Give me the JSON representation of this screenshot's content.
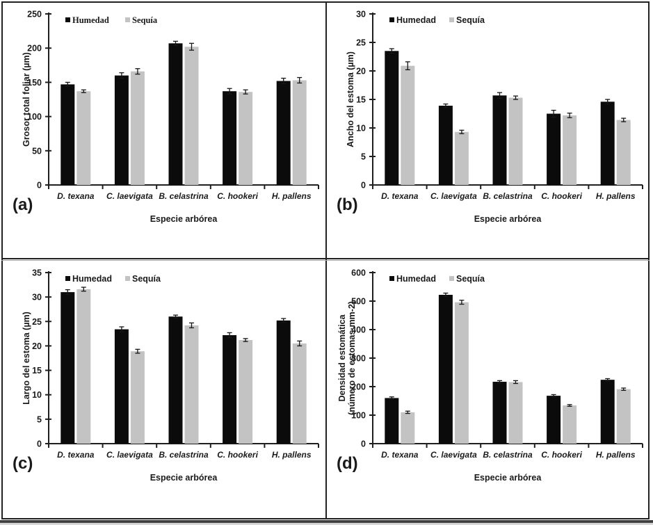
{
  "figure": {
    "x_axis_title": "Especie arbórea",
    "categories": [
      "D. texana",
      "C. laevigata",
      "B. celastrina",
      "C. hookeri",
      "H. pallens"
    ],
    "legend": {
      "items": [
        {
          "label": "Humedad",
          "color": "#0b0b0b"
        },
        {
          "label": "Sequía",
          "color": "#c3c3c3"
        }
      ],
      "position": "top-left-inside"
    },
    "colors": {
      "humedad_bar": "#0b0b0b",
      "sequia_bar": "#c3c3c3",
      "axis": "#1f1f1f",
      "text": "#1a1a1a",
      "frame": "#212121"
    }
  },
  "chart_data": [
    {
      "id": "a",
      "type": "bar",
      "panel_label": "(a)",
      "ylabel_lines": [
        "Grosor total foliar (µm)"
      ],
      "xlabel": "Especie arbórea",
      "categories": [
        "D. texana",
        "C. laevigata",
        "B. celastrina",
        "C. hookeri",
        "H. pallens"
      ],
      "ylim": [
        0,
        250
      ],
      "ytick_step": 50,
      "grid": false,
      "series": [
        {
          "name": "Humedad",
          "color": "#0b0b0b",
          "values": [
            147,
            160,
            207,
            137,
            152
          ],
          "errors": [
            3,
            4,
            3,
            4,
            4
          ]
        },
        {
          "name": "Sequía",
          "color": "#c3c3c3",
          "values": [
            137,
            166,
            202,
            136,
            153
          ],
          "errors": [
            2,
            4,
            5,
            3,
            4
          ]
        }
      ]
    },
    {
      "id": "b",
      "type": "bar",
      "panel_label": "(b)",
      "ylabel_lines": [
        "Ancho del estoma (µm)"
      ],
      "xlabel": "Especie arbórea",
      "categories": [
        "D. texana",
        "C. laevigata",
        "B. celastrina",
        "C. hookeri",
        "H. pallens"
      ],
      "ylim": [
        0,
        30
      ],
      "ytick_step": 5,
      "grid": false,
      "series": [
        {
          "name": "Humedad",
          "color": "#0b0b0b",
          "values": [
            23.5,
            13.9,
            15.7,
            12.5,
            14.6
          ],
          "errors": [
            0.4,
            0.3,
            0.5,
            0.6,
            0.4
          ]
        },
        {
          "name": "Sequía",
          "color": "#c3c3c3",
          "values": [
            20.9,
            9.3,
            15.3,
            12.2,
            11.4
          ],
          "errors": [
            0.7,
            0.3,
            0.3,
            0.4,
            0.3
          ]
        }
      ]
    },
    {
      "id": "c",
      "type": "bar",
      "panel_label": "(c)",
      "ylabel_lines": [
        "Largo del estoma (µm)"
      ],
      "xlabel": "Especie arbórea",
      "categories": [
        "D. texana",
        "C. laevigata",
        "B. celastrina",
        "C. hookeri",
        "H. pallens"
      ],
      "ylim": [
        0,
        35
      ],
      "ytick_step": 5,
      "grid": false,
      "series": [
        {
          "name": "Humedad",
          "color": "#0b0b0b",
          "values": [
            31.0,
            23.4,
            26.0,
            22.2,
            25.2
          ],
          "errors": [
            0.5,
            0.5,
            0.3,
            0.5,
            0.4
          ]
        },
        {
          "name": "Sequía",
          "color": "#c3c3c3",
          "values": [
            31.6,
            18.9,
            24.2,
            21.2,
            20.5
          ],
          "errors": [
            0.4,
            0.4,
            0.5,
            0.3,
            0.5
          ]
        }
      ]
    },
    {
      "id": "d",
      "type": "bar",
      "panel_label": "(d)",
      "ylabel_lines": [
        "Densidad estomática",
        "(número de estomas·mm-2)"
      ],
      "xlabel": "Especie arbórea",
      "categories": [
        "D. texana",
        "C. laevigata",
        "B. celastrina",
        "C. hookeri",
        "H. pallens"
      ],
      "ylim": [
        0,
        600
      ],
      "ytick_step": 100,
      "grid": false,
      "series": [
        {
          "name": "Humedad",
          "color": "#0b0b0b",
          "values": [
            160,
            522,
            217,
            168,
            224
          ],
          "errors": [
            4,
            6,
            4,
            4,
            4
          ]
        },
        {
          "name": "Sequía",
          "color": "#c3c3c3",
          "values": [
            110,
            496,
            216,
            134,
            191
          ],
          "errors": [
            4,
            7,
            5,
            3,
            4
          ]
        }
      ]
    }
  ]
}
